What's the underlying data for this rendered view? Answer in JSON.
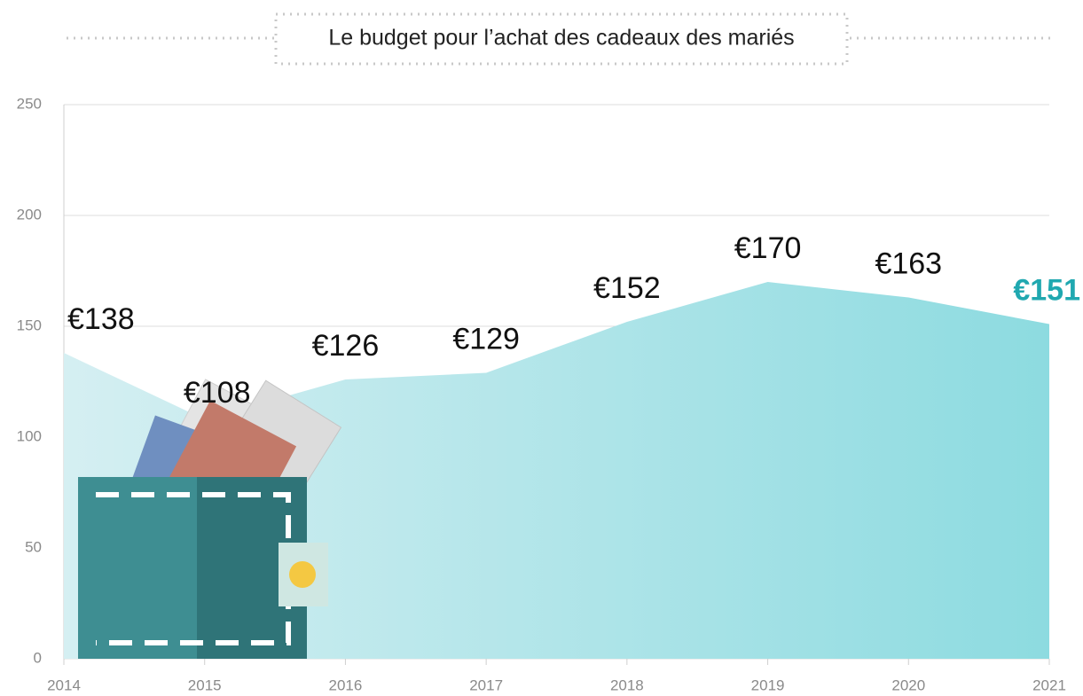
{
  "chart_data": {
    "type": "area",
    "title": "Le budget pour l’achat des cadeaux des mariés",
    "x": [
      2014,
      2015,
      2016,
      2017,
      2018,
      2019,
      2020,
      2021
    ],
    "values": [
      138,
      108,
      126,
      129,
      152,
      170,
      163,
      151
    ],
    "value_labels": [
      "€138",
      "€108",
      "€126",
      "€129",
      "€152",
      "€170",
      "€163",
      "€151"
    ],
    "colors": [
      "#d5eff2",
      "#8ddbe0"
    ],
    "highlight_color": "#20a8b0",
    "xlim": [
      2014,
      2021
    ],
    "xticks": [
      2014,
      2015,
      2016,
      2017,
      2018,
      2019,
      2020,
      2021
    ],
    "ylim": [
      0,
      250
    ],
    "yticks": [
      0,
      50,
      100,
      150,
      200,
      250
    ],
    "grid": true
  }
}
